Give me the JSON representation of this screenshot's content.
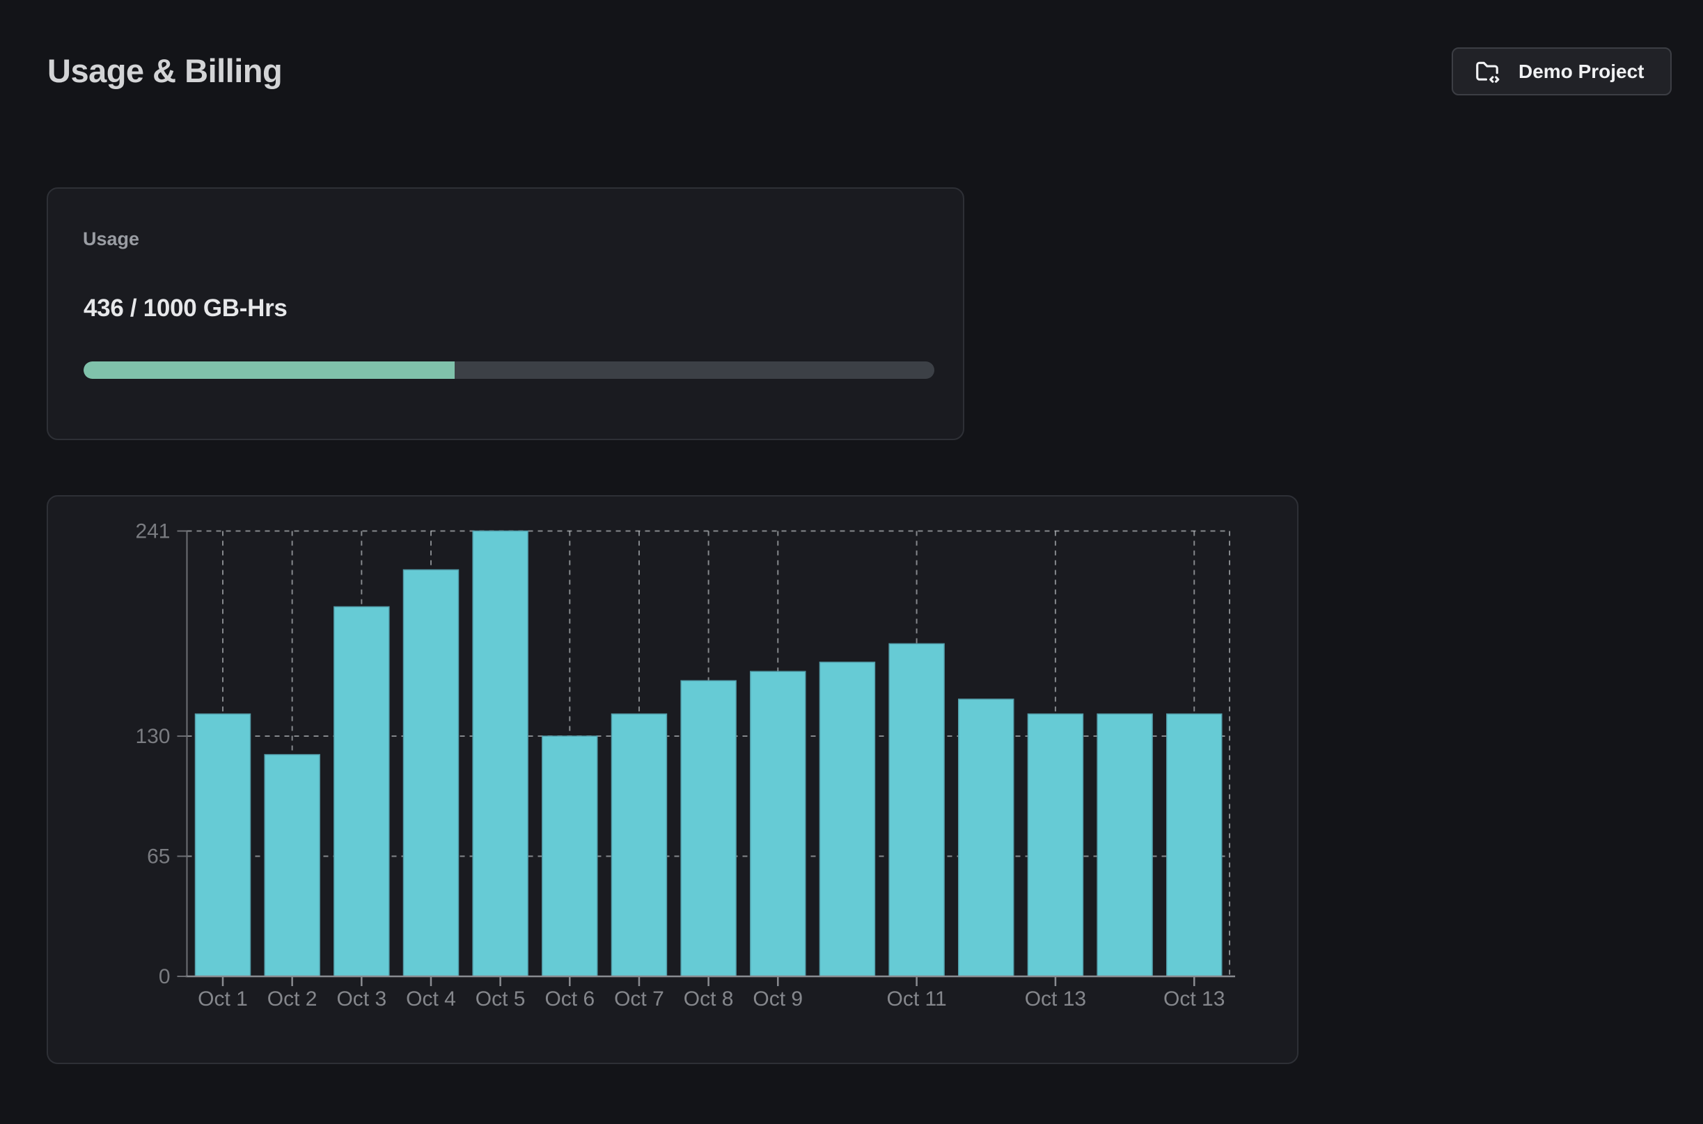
{
  "page": {
    "title": "Usage & Billing"
  },
  "header": {
    "project_button": {
      "label": "Demo Project",
      "icon": "folder-code-icon"
    }
  },
  "usage_card": {
    "label": "Usage",
    "value_text": "436 / 1000 GB-Hrs",
    "used": 436,
    "quota": 1000,
    "unit": "GB-Hrs",
    "percent": 43.6,
    "track_color": "#3c4046",
    "fill_color": "#80c2ab"
  },
  "chart_data": {
    "type": "bar",
    "title": "",
    "x": [
      "Oct 1",
      "Oct 2",
      "Oct 3",
      "Oct 4",
      "Oct 5",
      "Oct 6",
      "Oct 7",
      "Oct 8",
      "Oct 9",
      null,
      "Oct 11",
      null,
      "Oct 13",
      null,
      "Oct 13"
    ],
    "values": [
      142,
      120,
      200,
      220,
      241,
      130,
      142,
      160,
      165,
      170,
      180,
      150,
      142,
      142,
      142
    ],
    "y_ticks": [
      0,
      65,
      130,
      241
    ],
    "ylim": [
      0,
      241
    ],
    "xlabel": "",
    "ylabel": "",
    "legend": null,
    "grid": "dashed",
    "bar_color": "#66cbd5",
    "bar_edge_color": "#539fab",
    "grid_color": "rgba(223,225,230,0.55)",
    "y_label_color": "#7a7c81",
    "x_label_color": "#85878c"
  }
}
